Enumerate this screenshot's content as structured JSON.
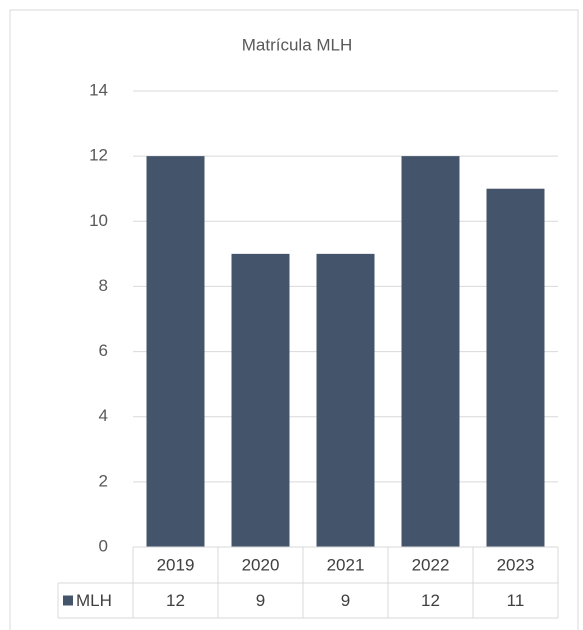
{
  "chart_data": {
    "type": "bar",
    "title": "Matrícula MLH",
    "categories": [
      "2019",
      "2020",
      "2021",
      "2022",
      "2023"
    ],
    "series": [
      {
        "name": "MLH",
        "color": "#44546a",
        "values": [
          12,
          9,
          9,
          12,
          11
        ]
      }
    ],
    "ylim": [
      0,
      14
    ],
    "yticks": [
      0,
      2,
      4,
      6,
      8,
      10,
      12,
      14
    ],
    "grid": true,
    "data_table": true
  }
}
